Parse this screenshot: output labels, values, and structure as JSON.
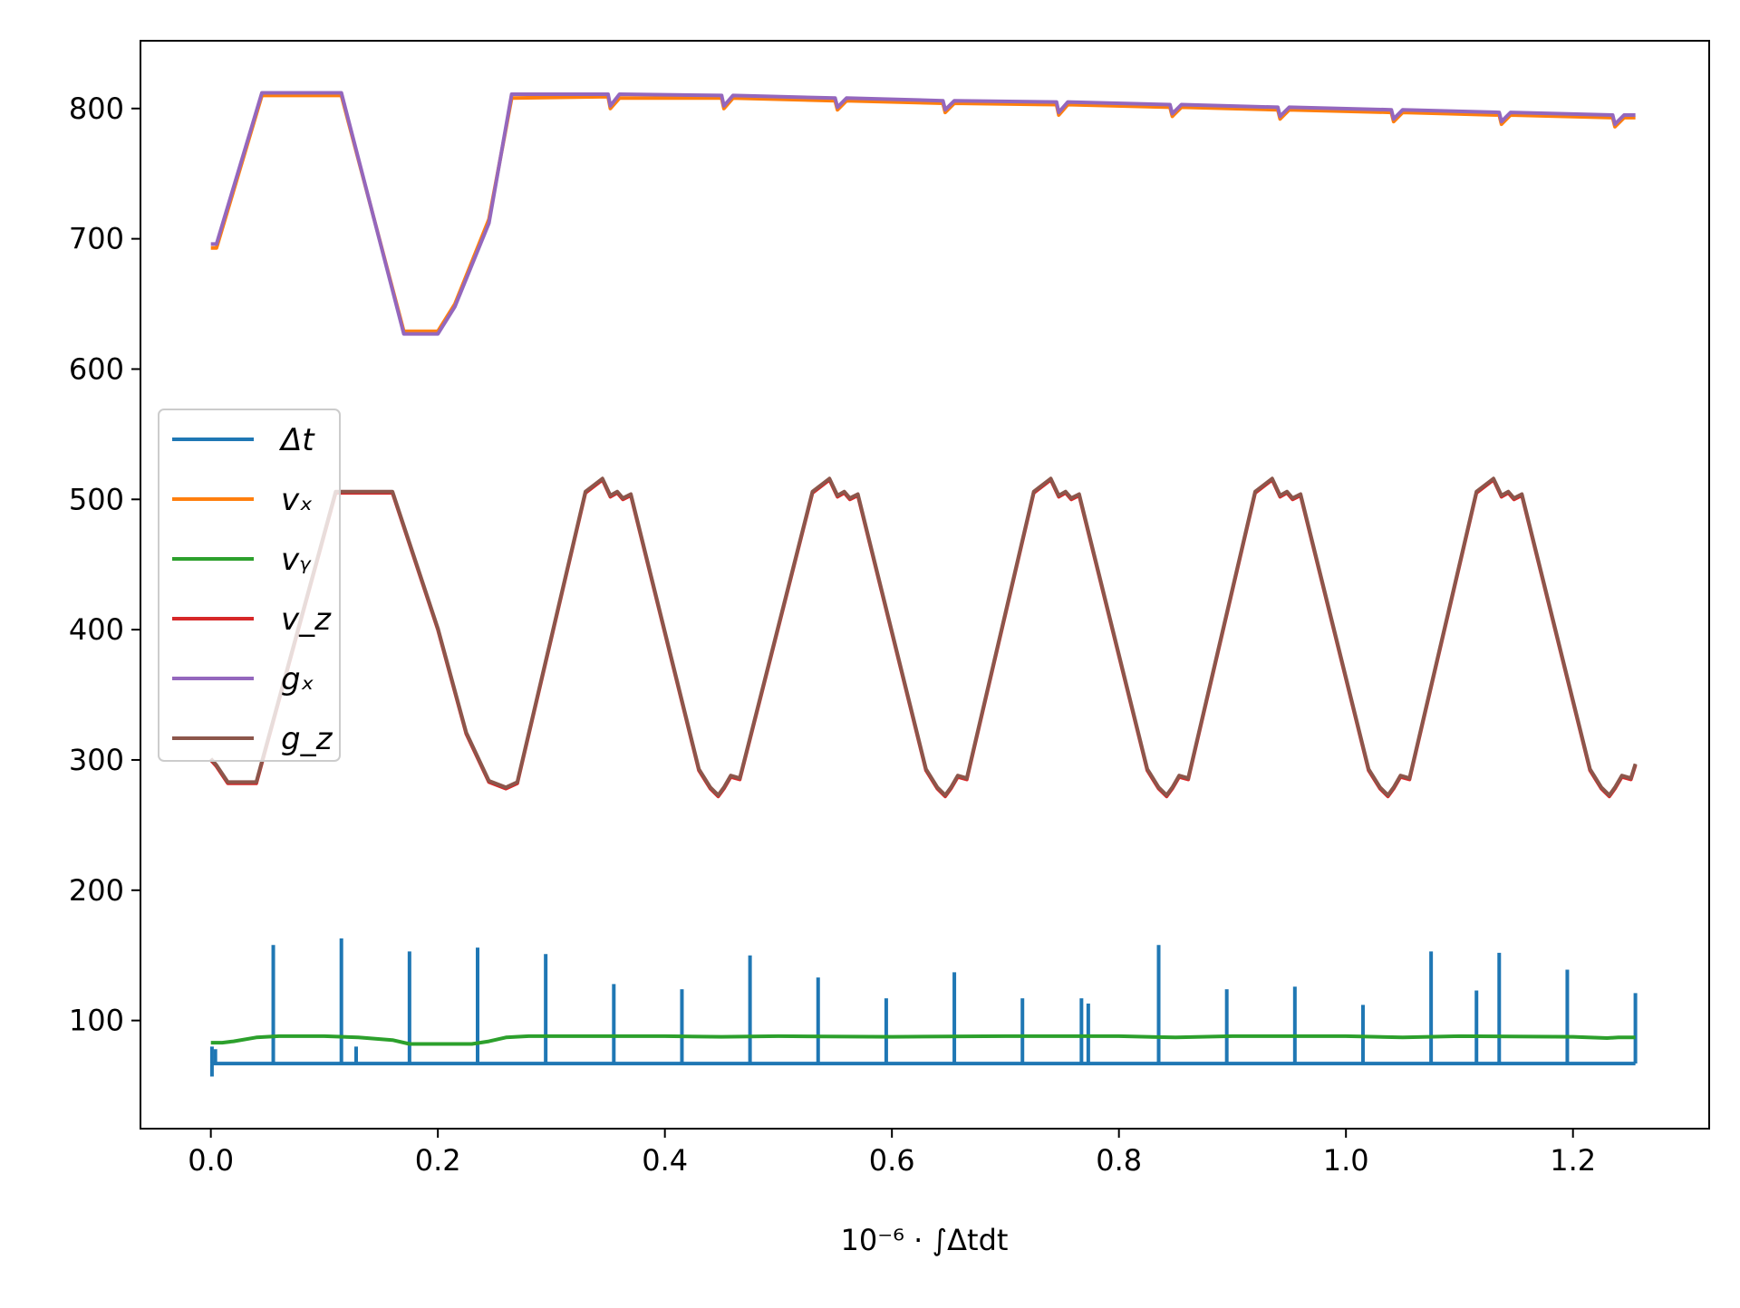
{
  "chart_data": {
    "type": "line",
    "title": "",
    "xlabel": "10⁻⁶ · ∫Δtdt",
    "ylabel": "",
    "xlim": [
      -0.062,
      1.32
    ],
    "ylim": [
      17,
      852
    ],
    "x_ticks": [
      0.0,
      0.2,
      0.4,
      0.6,
      0.8,
      1.0,
      1.2
    ],
    "x_tick_labels": [
      "0.0",
      "0.2",
      "0.4",
      "0.6",
      "0.8",
      "1.0",
      "1.2"
    ],
    "y_ticks": [
      100,
      200,
      300,
      400,
      500,
      600,
      700,
      800
    ],
    "y_tick_labels": [
      "100",
      "200",
      "300",
      "400",
      "500",
      "600",
      "700",
      "800"
    ],
    "grid": false,
    "legend_position": "center-left",
    "series": [
      {
        "name": "Δt",
        "color": "#1f77b4",
        "baseline": 67,
        "x": [
          0.0,
          1.255
        ],
        "y": [
          67,
          67
        ],
        "spikes": [
          {
            "x": 0.001,
            "y": 80
          },
          {
            "x": 0.004,
            "y": 78
          },
          {
            "x": 0.055,
            "y": 158
          },
          {
            "x": 0.115,
            "y": 163
          },
          {
            "x": 0.128,
            "y": 80
          },
          {
            "x": 0.175,
            "y": 153
          },
          {
            "x": 0.235,
            "y": 156
          },
          {
            "x": 0.295,
            "y": 151
          },
          {
            "x": 0.355,
            "y": 128
          },
          {
            "x": 0.415,
            "y": 124
          },
          {
            "x": 0.475,
            "y": 150
          },
          {
            "x": 0.535,
            "y": 133
          },
          {
            "x": 0.595,
            "y": 117
          },
          {
            "x": 0.655,
            "y": 137
          },
          {
            "x": 0.715,
            "y": 117
          },
          {
            "x": 0.767,
            "y": 117
          },
          {
            "x": 0.773,
            "y": 113
          },
          {
            "x": 0.835,
            "y": 158
          },
          {
            "x": 0.895,
            "y": 124
          },
          {
            "x": 0.955,
            "y": 126
          },
          {
            "x": 1.015,
            "y": 112
          },
          {
            "x": 1.075,
            "y": 153
          },
          {
            "x": 1.115,
            "y": 123
          },
          {
            "x": 1.135,
            "y": 152
          },
          {
            "x": 1.195,
            "y": 139
          },
          {
            "x": 1.255,
            "y": 121
          }
        ],
        "dips": [
          {
            "x": 0.001,
            "y": 57
          }
        ]
      },
      {
        "name": "vₓ",
        "color": "#ff7f0e",
        "x": [
          0.0,
          0.005,
          0.045,
          0.115,
          0.17,
          0.2,
          0.215,
          0.245,
          0.265,
          0.35,
          0.352,
          0.36,
          0.45,
          0.452,
          0.46,
          0.55,
          0.552,
          0.56,
          0.645,
          0.647,
          0.655,
          0.745,
          0.747,
          0.755,
          0.845,
          0.847,
          0.855,
          0.94,
          0.942,
          0.95,
          1.04,
          1.042,
          1.05,
          1.135,
          1.137,
          1.145,
          1.235,
          1.237,
          1.245,
          1.255
        ],
        "y": [
          693,
          693,
          810,
          810,
          629,
          629,
          650,
          715,
          808,
          809,
          800,
          808,
          808,
          800,
          808,
          806,
          799,
          806,
          804,
          797,
          804,
          803,
          795,
          803,
          801,
          794,
          801,
          799,
          792,
          799,
          797,
          790,
          797,
          795,
          788,
          795,
          793,
          786,
          793,
          793
        ]
      },
      {
        "name": "vᵧ",
        "color": "#2ca02c",
        "x": [
          0.0,
          0.01,
          0.02,
          0.04,
          0.06,
          0.1,
          0.13,
          0.16,
          0.175,
          0.2,
          0.23,
          0.245,
          0.26,
          0.28,
          0.4,
          0.45,
          0.5,
          0.6,
          0.7,
          0.8,
          0.85,
          0.9,
          1.0,
          1.05,
          1.1,
          1.2,
          1.23,
          1.24,
          1.255
        ],
        "y": [
          83,
          83,
          84,
          87,
          88,
          88,
          87,
          85,
          82,
          82,
          82,
          84,
          87,
          88,
          88,
          87.5,
          88,
          87.5,
          88,
          88,
          87,
          88,
          88,
          87,
          88,
          87.5,
          86.5,
          87,
          87
        ]
      },
      {
        "name": "v_z",
        "color": "#d62728",
        "x": [
          0.0,
          0.005,
          0.015,
          0.04,
          0.11,
          0.16,
          0.2,
          0.225,
          0.245,
          0.26,
          0.27,
          0.33,
          0.345,
          0.352,
          0.358,
          0.363,
          0.37,
          0.43,
          0.44,
          0.447,
          0.452,
          0.458,
          0.466,
          0.53,
          0.545,
          0.552,
          0.558,
          0.563,
          0.57,
          0.63,
          0.64,
          0.647,
          0.652,
          0.658,
          0.666,
          0.725,
          0.74,
          0.747,
          0.753,
          0.758,
          0.765,
          0.825,
          0.835,
          0.842,
          0.847,
          0.853,
          0.861,
          0.92,
          0.935,
          0.942,
          0.948,
          0.953,
          0.96,
          1.02,
          1.03,
          1.037,
          1.042,
          1.048,
          1.056,
          1.115,
          1.13,
          1.137,
          1.143,
          1.148,
          1.155,
          1.215,
          1.225,
          1.232,
          1.237,
          1.243,
          1.251,
          1.255
        ],
        "y": [
          300,
          295,
          282,
          282,
          505,
          505,
          400,
          320,
          283,
          278,
          282,
          505,
          515,
          502,
          505,
          500,
          503,
          292,
          278,
          272,
          278,
          287,
          285,
          505,
          515,
          502,
          505,
          500,
          503,
          292,
          278,
          272,
          278,
          287,
          285,
          505,
          515,
          502,
          505,
          500,
          503,
          292,
          278,
          272,
          278,
          287,
          285,
          505,
          515,
          502,
          505,
          500,
          503,
          292,
          278,
          272,
          278,
          287,
          285,
          505,
          515,
          502,
          505,
          500,
          503,
          292,
          278,
          272,
          278,
          287,
          285,
          296
        ]
      },
      {
        "name": "gₓ",
        "color": "#9467bd",
        "x": [
          0.0,
          0.005,
          0.045,
          0.115,
          0.17,
          0.2,
          0.215,
          0.245,
          0.265,
          0.35,
          0.352,
          0.36,
          0.45,
          0.452,
          0.46,
          0.55,
          0.552,
          0.56,
          0.645,
          0.647,
          0.655,
          0.745,
          0.747,
          0.755,
          0.845,
          0.847,
          0.855,
          0.94,
          0.942,
          0.95,
          1.04,
          1.042,
          1.05,
          1.135,
          1.137,
          1.145,
          1.235,
          1.237,
          1.245,
          1.255
        ],
        "y": [
          696,
          696,
          812,
          812,
          627,
          627,
          648,
          712,
          811,
          811,
          802,
          811,
          810,
          802,
          810,
          808,
          801,
          808,
          806,
          799,
          806,
          805,
          797,
          805,
          803,
          796,
          803,
          801,
          794,
          801,
          799,
          792,
          799,
          797,
          790,
          797,
          795,
          788,
          795,
          795
        ]
      },
      {
        "name": "g_z",
        "color": "#8c564b",
        "x": [
          0.0,
          0.005,
          0.015,
          0.04,
          0.11,
          0.16,
          0.2,
          0.225,
          0.245,
          0.26,
          0.27,
          0.33,
          0.345,
          0.352,
          0.358,
          0.363,
          0.37,
          0.43,
          0.44,
          0.447,
          0.452,
          0.458,
          0.466,
          0.53,
          0.545,
          0.552,
          0.558,
          0.563,
          0.57,
          0.63,
          0.64,
          0.647,
          0.652,
          0.658,
          0.666,
          0.725,
          0.74,
          0.747,
          0.753,
          0.758,
          0.765,
          0.825,
          0.835,
          0.842,
          0.847,
          0.853,
          0.861,
          0.92,
          0.935,
          0.942,
          0.948,
          0.953,
          0.96,
          1.02,
          1.03,
          1.037,
          1.042,
          1.048,
          1.056,
          1.115,
          1.13,
          1.137,
          1.143,
          1.148,
          1.155,
          1.215,
          1.225,
          1.232,
          1.237,
          1.243,
          1.251,
          1.255
        ],
        "y": [
          301,
          296,
          283,
          283,
          506,
          506,
          401,
          321,
          284,
          279,
          283,
          506,
          516,
          503,
          506,
          501,
          504,
          293,
          279,
          273,
          279,
          288,
          286,
          506,
          516,
          503,
          506,
          501,
          504,
          293,
          279,
          273,
          279,
          288,
          286,
          506,
          516,
          503,
          506,
          501,
          504,
          293,
          279,
          273,
          279,
          288,
          286,
          506,
          516,
          503,
          506,
          501,
          504,
          293,
          279,
          273,
          279,
          288,
          286,
          506,
          516,
          503,
          506,
          501,
          504,
          293,
          279,
          273,
          279,
          288,
          286,
          297
        ]
      }
    ]
  }
}
